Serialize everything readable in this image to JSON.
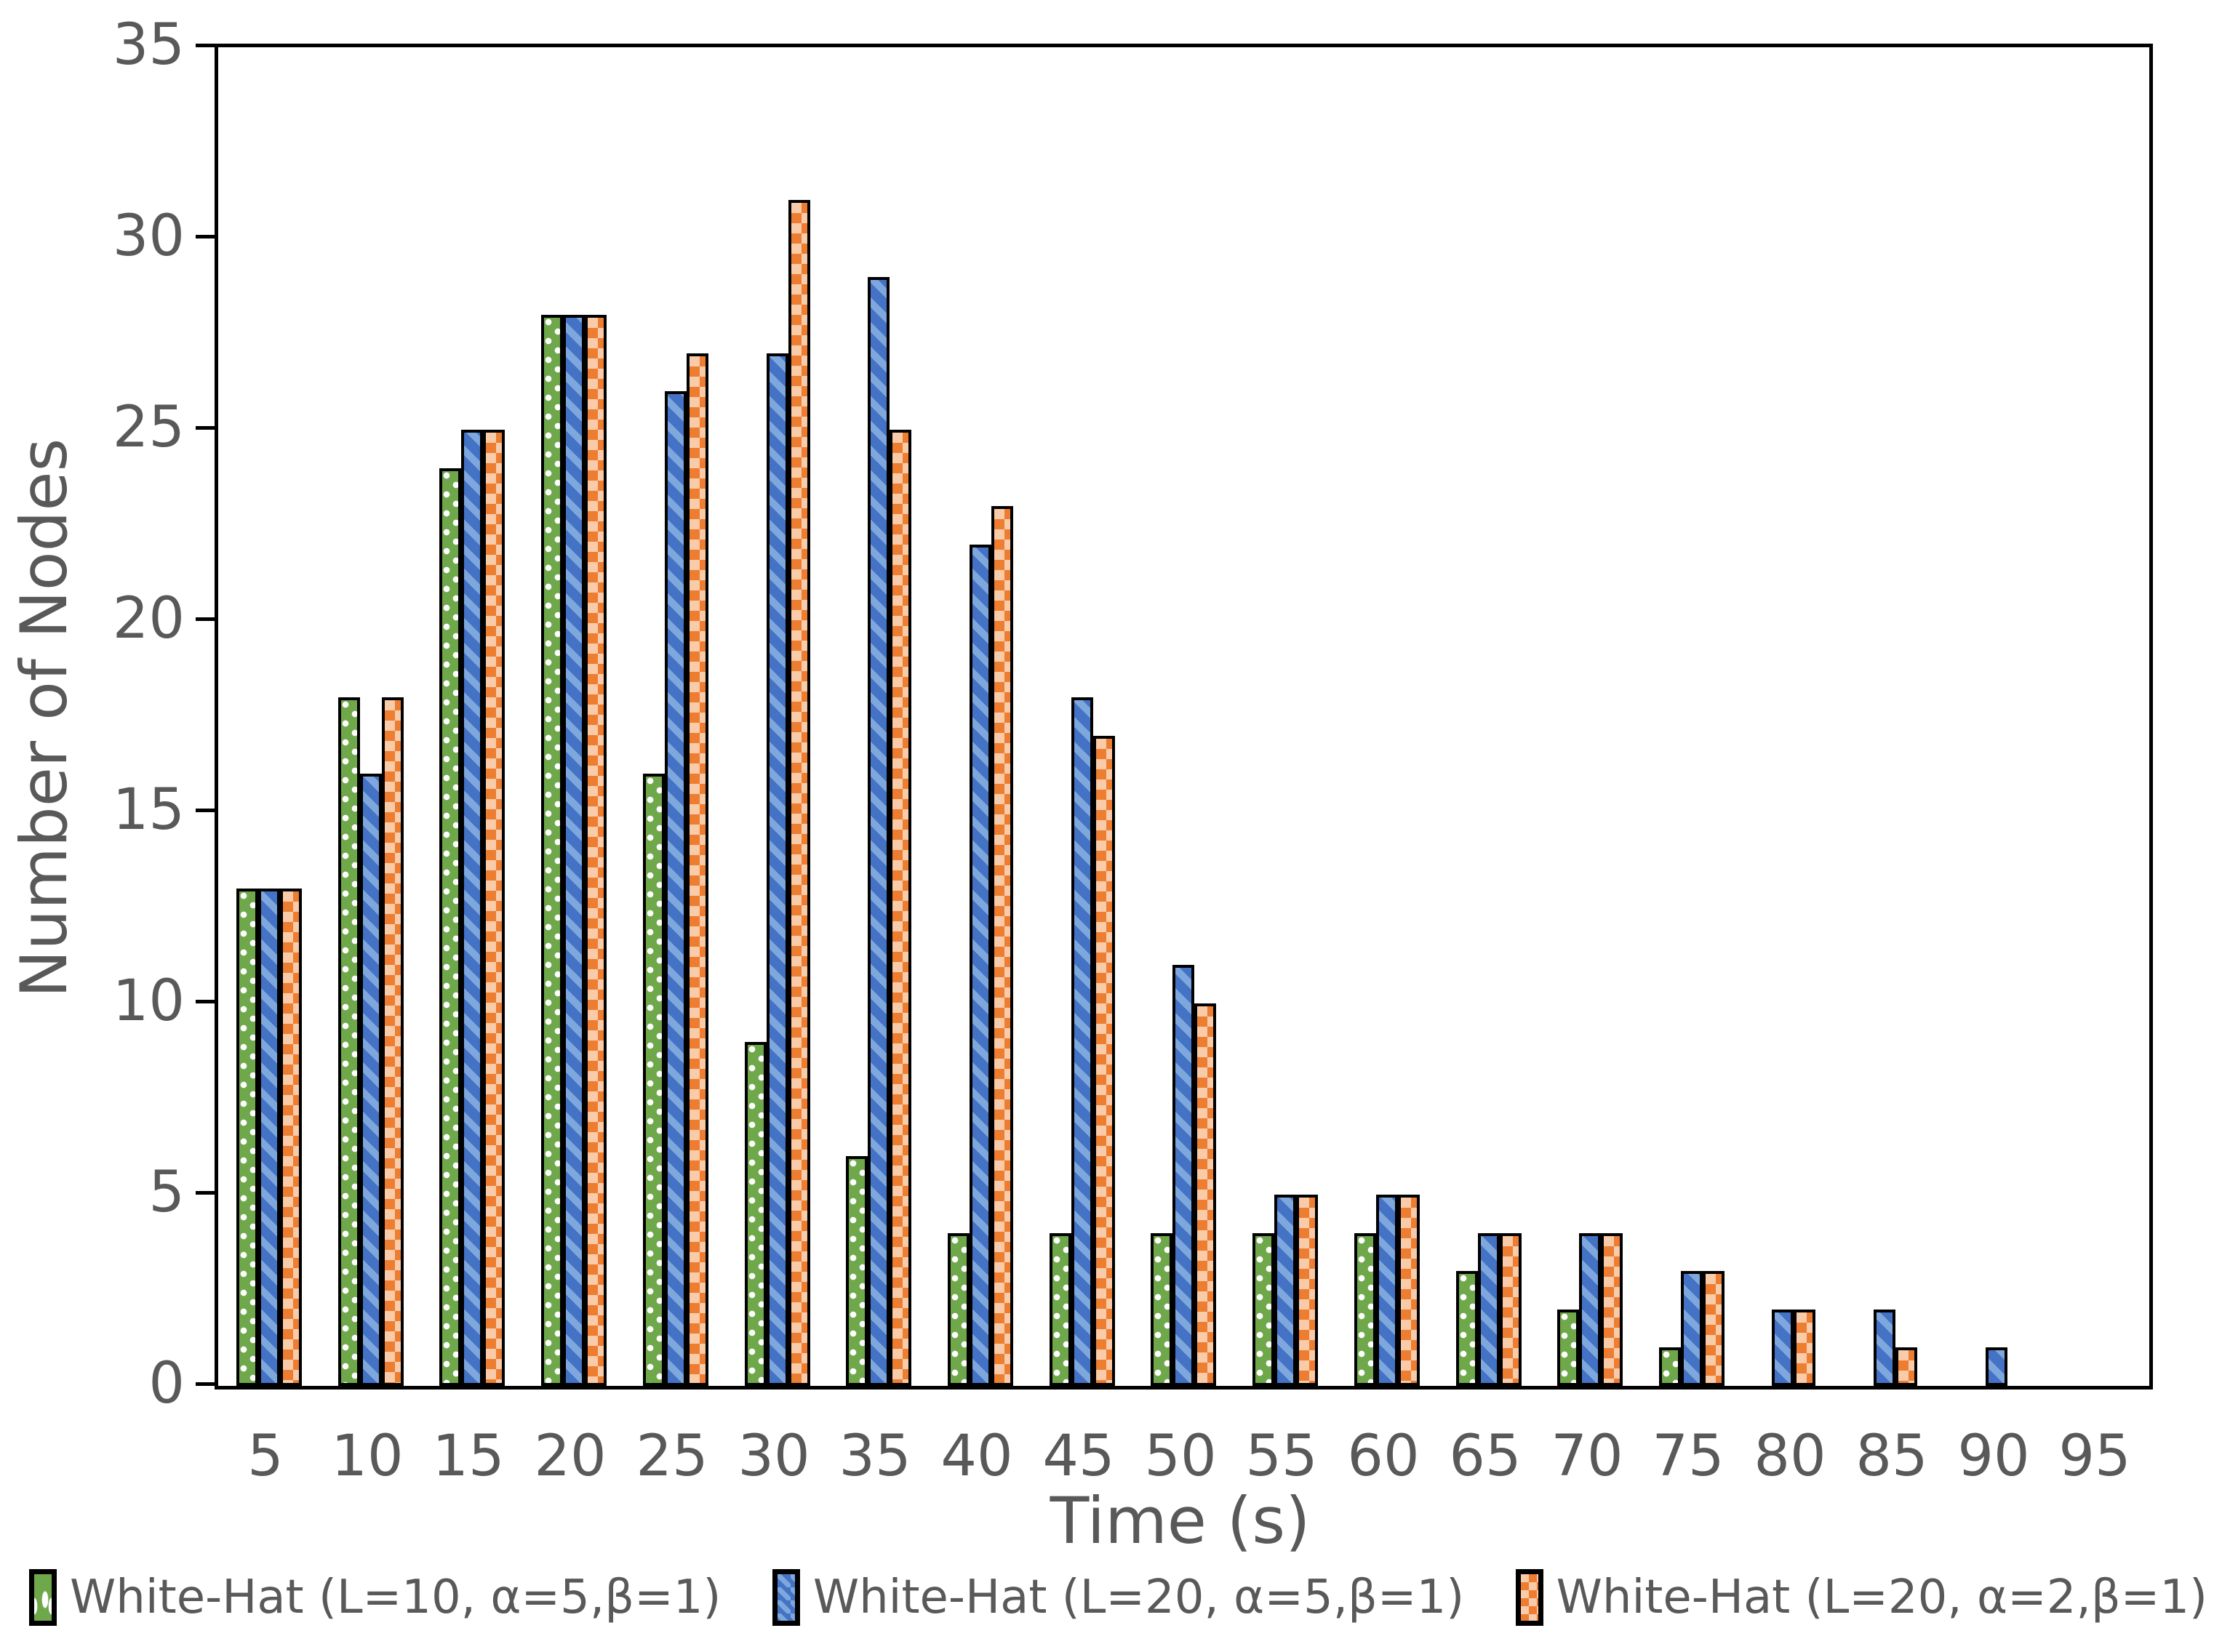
{
  "chart_data": {
    "type": "bar",
    "title": "",
    "xlabel": "Time (s)",
    "ylabel": "Number of Nodes",
    "categories": [
      "5",
      "10",
      "15",
      "20",
      "25",
      "30",
      "35",
      "40",
      "45",
      "50",
      "55",
      "60",
      "65",
      "70",
      "75",
      "80",
      "85",
      "90",
      "95"
    ],
    "series": [
      {
        "name": "White-Hat (L=10, α=5,β=1)",
        "pattern": "white-dots",
        "fill_color": "#6FA84A",
        "pattern_color": "#FFFFFF",
        "values": [
          13,
          18,
          24,
          28,
          16,
          9,
          6,
          4,
          4,
          4,
          4,
          4,
          3,
          2,
          1,
          0,
          0,
          0,
          0
        ]
      },
      {
        "name": "White-Hat (L=20, α=5,β=1)",
        "pattern": "downward-diagonal-stripes",
        "fill_color": "#4472C4",
        "pattern_color": "#7DA7DD",
        "values": [
          13,
          16,
          25,
          28,
          26,
          27,
          29,
          22,
          18,
          11,
          5,
          5,
          4,
          4,
          3,
          2,
          2,
          1,
          0
        ]
      },
      {
        "name": "White-Hat (L=20, α=2,β=1)",
        "pattern": "checkerboard",
        "fill_color": "#ED7D31",
        "pattern_color": "#F9CBA8",
        "values": [
          13,
          18,
          25,
          28,
          27,
          31,
          25,
          23,
          17,
          10,
          5,
          5,
          4,
          4,
          3,
          2,
          1,
          0,
          0
        ]
      }
    ],
    "ylim": [
      0,
      35
    ],
    "yticks": [
      0,
      5,
      10,
      15,
      20,
      25,
      30,
      35
    ],
    "grid": false,
    "legend_position": "bottom",
    "bar_outline_color": "#000000",
    "axis_color": "#000000",
    "text_color": "#595959"
  }
}
